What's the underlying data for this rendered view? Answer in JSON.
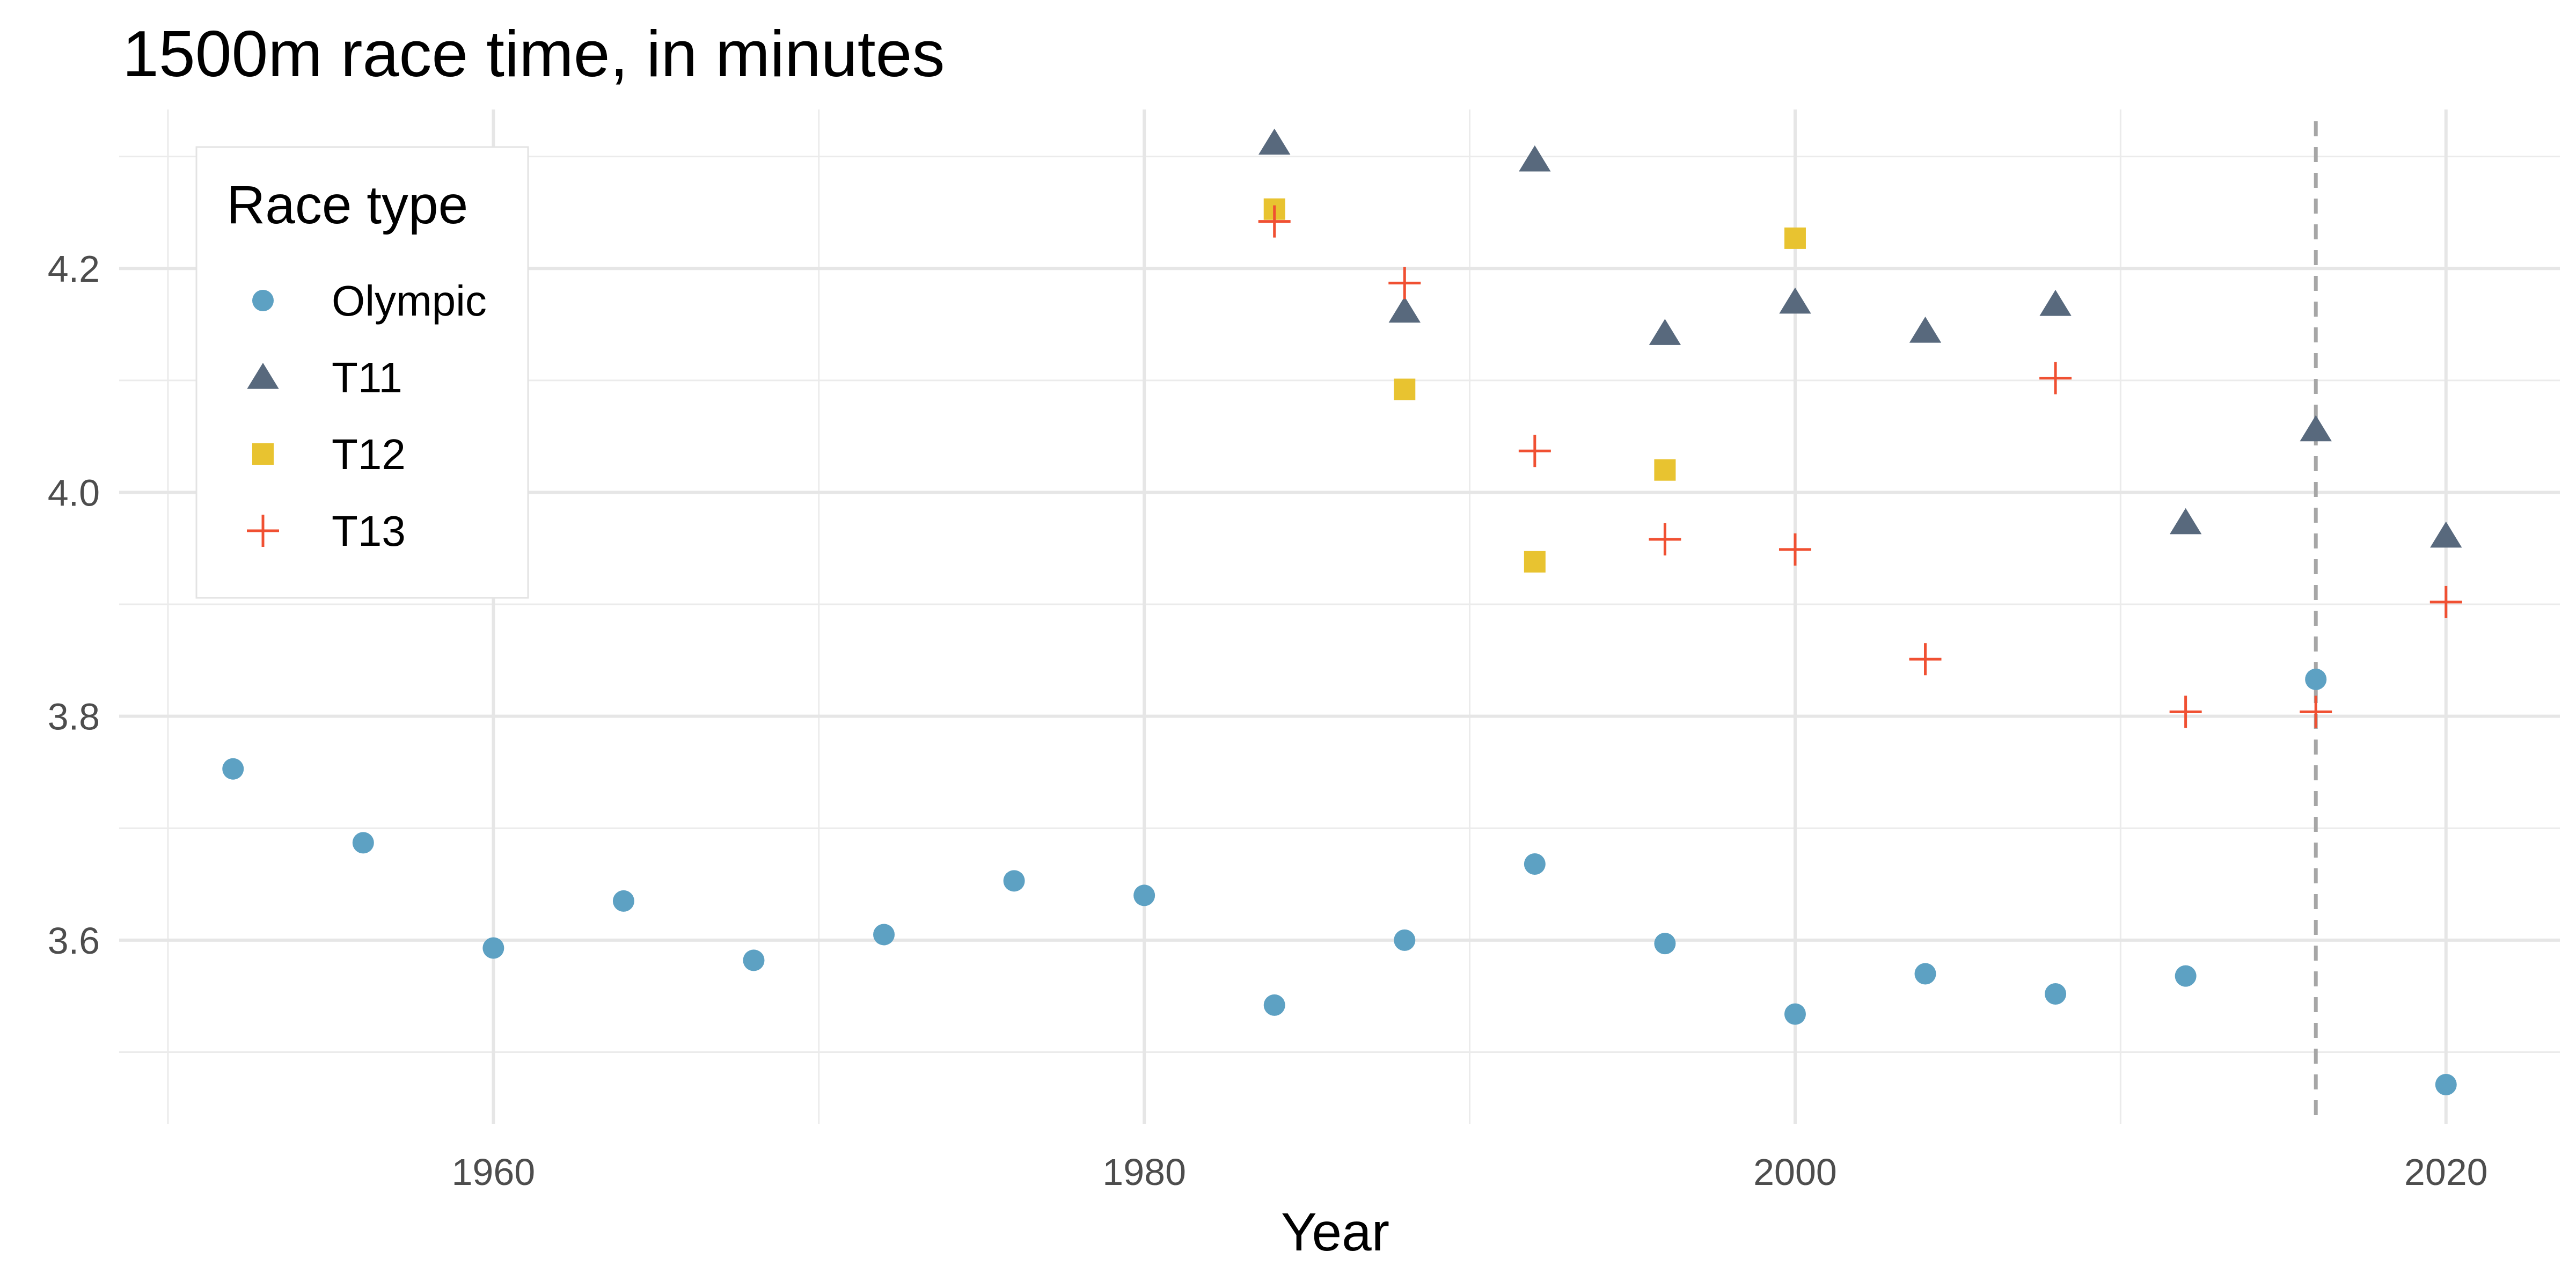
{
  "chart_data": {
    "type": "scatter",
    "title": "1500m race time, in minutes",
    "xlabel": "Year",
    "ylabel": "",
    "xlim": [
      1948.5,
      2023.5
    ],
    "ylim": [
      3.436,
      4.342
    ],
    "x_ticks": [
      1960,
      1980,
      2000,
      2020
    ],
    "x_minor_ticks": [
      1950,
      1970,
      1990,
      2010
    ],
    "y_ticks": [
      3.6,
      3.8,
      4.0,
      4.2
    ],
    "y_minor_ticks": [
      3.5,
      3.7,
      3.9,
      4.1,
      4.3
    ],
    "grid": true,
    "reference_line": {
      "x": 2016,
      "style": "dashed"
    },
    "legend": {
      "title": "Race type",
      "position": "top-left"
    },
    "series": [
      {
        "name": "Olympic",
        "marker": "circle",
        "color": "#5DA1C3",
        "x": [
          1952,
          1956,
          1960,
          1964,
          1968,
          1972,
          1976,
          1980,
          1984,
          1988,
          1992,
          1996,
          2000,
          2004,
          2008,
          2012,
          2016,
          2020
        ],
        "y": [
          3.753,
          3.687,
          3.593,
          3.635,
          3.582,
          3.605,
          3.653,
          3.64,
          3.542,
          3.6,
          3.668,
          3.597,
          3.534,
          3.57,
          3.552,
          3.568,
          3.833,
          3.471
        ]
      },
      {
        "name": "T11",
        "marker": "triangle",
        "color": "#58697D",
        "x": [
          1984,
          1988,
          1992,
          1996,
          2000,
          2004,
          2008,
          2012,
          2016,
          2020
        ],
        "y": [
          4.312,
          4.162,
          4.297,
          4.142,
          4.17,
          4.144,
          4.168,
          3.973,
          4.056,
          3.961
        ]
      },
      {
        "name": "T12",
        "marker": "square",
        "color": "#E8C330",
        "x": [
          1984,
          1988,
          1992,
          1996,
          2000
        ],
        "y": [
          4.253,
          4.092,
          3.938,
          4.02,
          4.227
        ]
      },
      {
        "name": "T13",
        "marker": "plus",
        "color": "#F05032",
        "x": [
          1984,
          1988,
          1992,
          1996,
          2000,
          2004,
          2008,
          2012,
          2016,
          2020
        ],
        "y": [
          4.242,
          4.187,
          4.037,
          3.958,
          3.949,
          3.851,
          4.102,
          3.804,
          3.804,
          3.902
        ]
      }
    ]
  }
}
